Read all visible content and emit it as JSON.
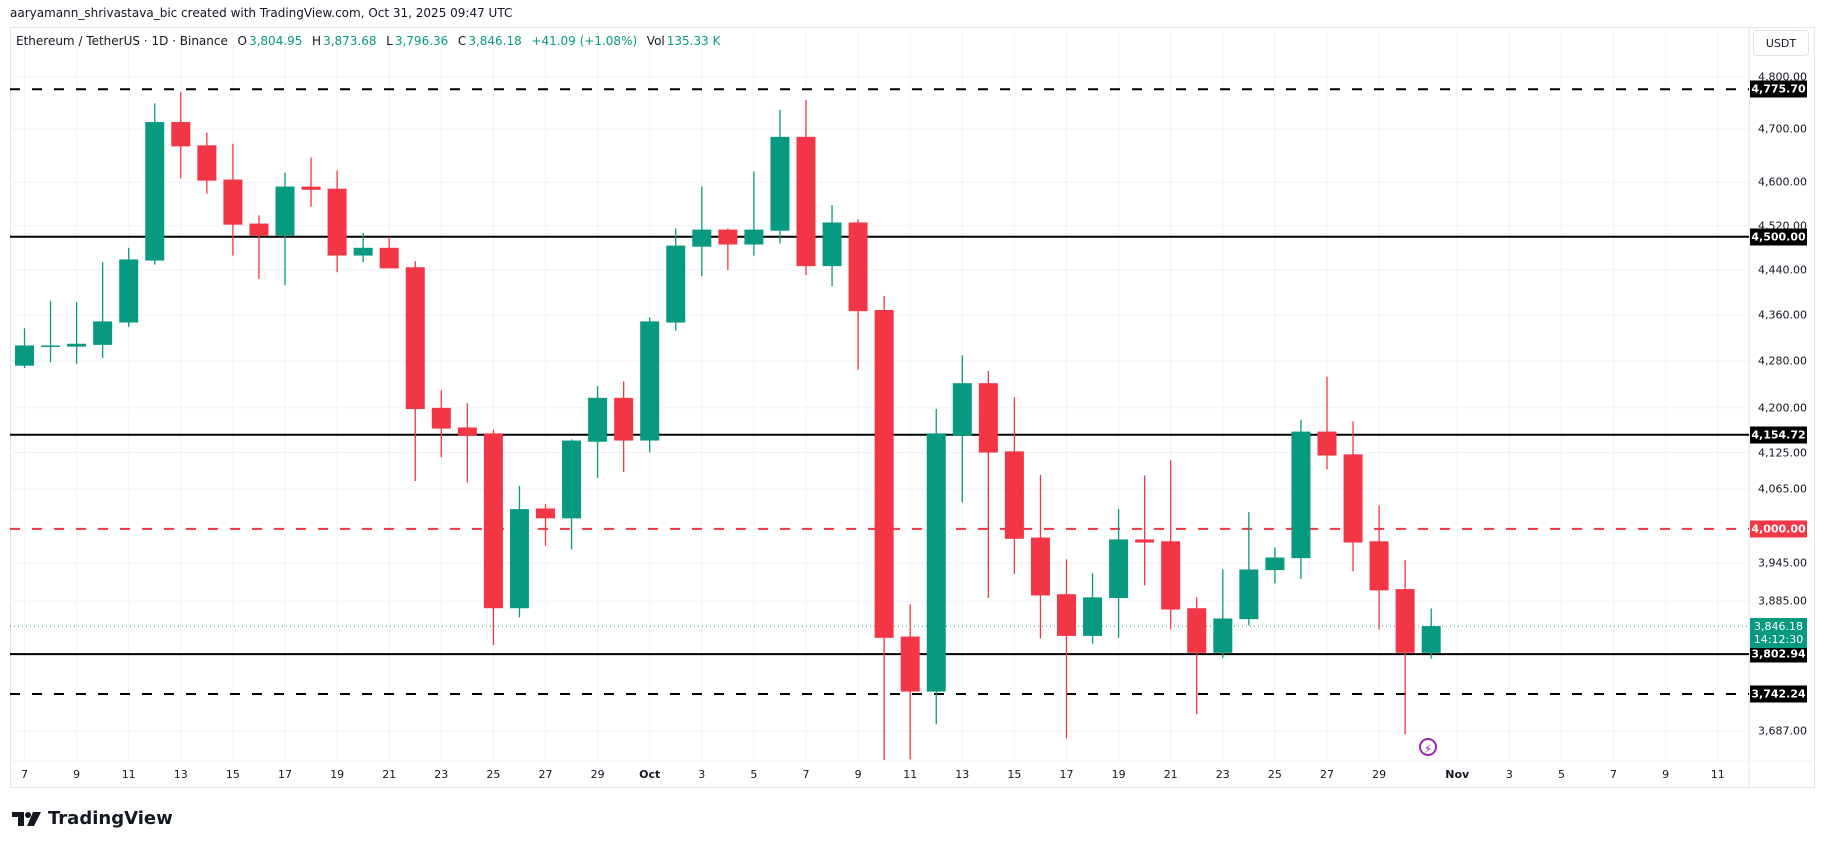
{
  "credit": "aaryamann_shrivastava_bic created with TradingView.com, Oct 31, 2025 09:47 UTC",
  "legend": {
    "symbol": "Ethereum / TetherUS · 1D · Binance",
    "o_label": "O",
    "o": "3,804.95",
    "h_label": "H",
    "h": "3,873.68",
    "l_label": "L",
    "l": "3,796.36",
    "c_label": "C",
    "c": "3,846.18",
    "change": "+41.09 (+1.08%)",
    "vol_label": "Vol",
    "vol": "135.33 K"
  },
  "currency_button": "USDT",
  "logo_text": "TradingView",
  "colors": {
    "up": "#089981",
    "down": "#F23645",
    "line": "#000000",
    "alert": "#9c27b0"
  },
  "icons": {
    "alert": "lightning-icon"
  },
  "chart_data": {
    "type": "candlestick",
    "y_scale": "log",
    "grid": true,
    "dates": [
      "2025-09-07",
      "2025-09-08",
      "2025-09-09",
      "2025-09-10",
      "2025-09-11",
      "2025-09-12",
      "2025-09-13",
      "2025-09-14",
      "2025-09-15",
      "2025-09-16",
      "2025-09-17",
      "2025-09-18",
      "2025-09-19",
      "2025-09-20",
      "2025-09-21",
      "2025-09-22",
      "2025-09-23",
      "2025-09-24",
      "2025-09-25",
      "2025-09-26",
      "2025-09-27",
      "2025-09-28",
      "2025-09-29",
      "2025-09-30",
      "2025-10-01",
      "2025-10-02",
      "2025-10-03",
      "2025-10-04",
      "2025-10-05",
      "2025-10-06",
      "2025-10-07",
      "2025-10-08",
      "2025-10-09",
      "2025-10-10",
      "2025-10-11",
      "2025-10-12",
      "2025-10-13",
      "2025-10-14",
      "2025-10-15",
      "2025-10-16",
      "2025-10-17",
      "2025-10-18",
      "2025-10-19",
      "2025-10-20",
      "2025-10-21",
      "2025-10-22",
      "2025-10-23",
      "2025-10-24",
      "2025-10-25",
      "2025-10-26",
      "2025-10-27",
      "2025-10-28",
      "2025-10-29",
      "2025-10-30",
      "2025-10-31"
    ],
    "open": [
      4272,
      4305,
      4305,
      4308,
      4347,
      4457,
      4713,
      4669,
      4605,
      4524,
      4502,
      4592,
      4588,
      4466,
      4480,
      4445,
      4200,
      4167,
      4157,
      3874,
      4033,
      4017,
      4143,
      4217,
      4145,
      4347,
      4482,
      4513,
      4486,
      4511,
      4685,
      4447,
      4526,
      4369,
      3830,
      3746,
      4153,
      4242,
      4127,
      3986,
      3896,
      3831,
      3890,
      3983,
      3980,
      3874,
      3805,
      3857,
      3934,
      3953,
      4160,
      4122,
      3980,
      3904,
      3804.95
    ],
    "high": [
      4337,
      4385,
      4383,
      4454,
      4480,
      4749,
      4770,
      4693,
      4672,
      4539,
      4618,
      4646,
      4622,
      4507,
      4500,
      4456,
      4230,
      4208,
      4163,
      4070,
      4040,
      4147,
      4237,
      4245,
      4356,
      4515,
      4592,
      4515,
      4620,
      4736,
      4755,
      4558,
      4532,
      4394,
      3880,
      4198,
      4290,
      4263,
      4218,
      4088,
      3951,
      3929,
      4032,
      4087,
      4112,
      3891,
      3935,
      4027,
      3970,
      4180,
      4253,
      4177,
      4038,
      3950,
      3873.68
    ],
    "low": [
      4268,
      4278,
      4275,
      4285,
      4339,
      4450,
      4607,
      4579,
      4466,
      4424,
      4413,
      4555,
      4436,
      4454,
      4443,
      4078,
      4117,
      4075,
      3817,
      3860,
      3973,
      3967,
      4083,
      4093,
      4125,
      4333,
      4429,
      4440,
      4466,
      4488,
      4431,
      4411,
      4265,
      3644,
      3645,
      3697,
      4043,
      3890,
      3928,
      3827,
      3676,
      3819,
      3828,
      3910,
      3841,
      3712,
      3797,
      3847,
      3913,
      3920,
      4097,
      3932,
      3841,
      3682,
      3796.36
    ],
    "close": [
      4307,
      4307,
      4310,
      4349,
      4459,
      4713,
      4667,
      4603,
      4522,
      4502,
      4592,
      4586,
      4466,
      4480,
      4443,
      4198,
      4165,
      4153,
      3874,
      4032,
      4017,
      4145,
      4217,
      4145,
      4349,
      4484,
      4513,
      4486,
      4513,
      4685,
      4447,
      4526,
      4367,
      3828,
      3746,
      4157,
      4242,
      4125,
      3984,
      3894,
      3831,
      3891,
      3983,
      3978,
      3872,
      3805,
      3858,
      3935,
      3954,
      4160,
      4120,
      3978,
      3902,
      3805,
      3846.18
    ],
    "y_ticks": [
      {
        "value": 4800,
        "label": "4,800.00"
      },
      {
        "value": 4700,
        "label": "4,700.00"
      },
      {
        "value": 4600,
        "label": "4,600.00"
      },
      {
        "value": 4520,
        "label": "4,520.00"
      },
      {
        "value": 4440,
        "label": "4,440.00"
      },
      {
        "value": 4360,
        "label": "4,360.00"
      },
      {
        "value": 4280,
        "label": "4,280.00"
      },
      {
        "value": 4200,
        "label": "4,200.00"
      },
      {
        "value": 4125,
        "label": "4,125.00"
      },
      {
        "value": 4065,
        "label": "4,065.00"
      },
      {
        "value": 3945,
        "label": "3,945.00"
      },
      {
        "value": 3885,
        "label": "3,885.00"
      },
      {
        "value": 3687,
        "label": "3,687.00"
      }
    ],
    "x_ticks": [
      {
        "date": "2025-09-07",
        "label": "7"
      },
      {
        "date": "2025-09-09",
        "label": "9"
      },
      {
        "date": "2025-09-11",
        "label": "11"
      },
      {
        "date": "2025-09-13",
        "label": "13"
      },
      {
        "date": "2025-09-15",
        "label": "15"
      },
      {
        "date": "2025-09-17",
        "label": "17"
      },
      {
        "date": "2025-09-19",
        "label": "19"
      },
      {
        "date": "2025-09-21",
        "label": "21"
      },
      {
        "date": "2025-09-23",
        "label": "23"
      },
      {
        "date": "2025-09-25",
        "label": "25"
      },
      {
        "date": "2025-09-27",
        "label": "27"
      },
      {
        "date": "2025-09-29",
        "label": "29"
      },
      {
        "date": "2025-10-01",
        "label": "Oct"
      },
      {
        "date": "2025-10-03",
        "label": "3"
      },
      {
        "date": "2025-10-05",
        "label": "5"
      },
      {
        "date": "2025-10-07",
        "label": "7"
      },
      {
        "date": "2025-10-09",
        "label": "9"
      },
      {
        "date": "2025-10-11",
        "label": "11"
      },
      {
        "date": "2025-10-13",
        "label": "13"
      },
      {
        "date": "2025-10-15",
        "label": "15"
      },
      {
        "date": "2025-10-17",
        "label": "17"
      },
      {
        "date": "2025-10-19",
        "label": "19"
      },
      {
        "date": "2025-10-21",
        "label": "21"
      },
      {
        "date": "2025-10-23",
        "label": "23"
      },
      {
        "date": "2025-10-25",
        "label": "25"
      },
      {
        "date": "2025-10-27",
        "label": "27"
      },
      {
        "date": "2025-10-29",
        "label": "29"
      },
      {
        "date": "2025-11-01",
        "label": "Nov"
      },
      {
        "date": "2025-11-03",
        "label": "3"
      },
      {
        "date": "2025-11-05",
        "label": "5"
      },
      {
        "date": "2025-11-07",
        "label": "7"
      },
      {
        "date": "2025-11-09",
        "label": "9"
      },
      {
        "date": "2025-11-11",
        "label": "11"
      }
    ],
    "horizontal_lines": [
      {
        "price": 4775.7,
        "label": "4,775.70",
        "style": "dashed",
        "color": "#000000"
      },
      {
        "price": 4500.0,
        "label": "4,500.00",
        "style": "solid",
        "color": "#000000"
      },
      {
        "price": 4154.72,
        "label": "4,154.72",
        "style": "solid",
        "color": "#000000"
      },
      {
        "price": 4000.0,
        "label": "4,000.00",
        "style": "dashed",
        "color": "#F23645"
      },
      {
        "price": 3802.94,
        "label": "3,802.94",
        "style": "solid",
        "color": "#000000"
      },
      {
        "price": 3742.24,
        "label": "3,742.24",
        "style": "dashed",
        "color": "#000000"
      }
    ],
    "last_price": {
      "price": 3846.18,
      "label": "3,846.18",
      "countdown": "14:12:30",
      "color": "#089981"
    }
  }
}
